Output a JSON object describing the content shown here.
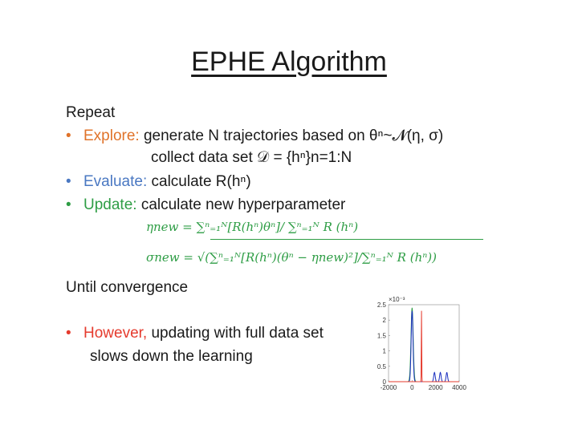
{
  "slide": {
    "title": "EPHE Algorithm",
    "repeat": "Repeat",
    "explore_label": "Explore:",
    "explore_text": "generate N trajectories based on θⁿ~𝓝(η, σ)",
    "collect_text": "collect data set 𝒟 = {hⁿ}n=1:N",
    "evaluate_label": "Evaluate:",
    "evaluate_text": "calculate R(hⁿ)",
    "update_label": "Update:",
    "update_text": "calculate new hyperparameter",
    "eta_formula": "ηnew = ∑ⁿ₌₁ᴺ[R(hⁿ)θⁿ]/ ∑ⁿ₌₁ᴺ R (hⁿ)",
    "sigma_formula": "σnew = √(∑ⁿ₌₁ᴺ[R(hⁿ)(θⁿ − ηnew)²]/∑ⁿ₌₁ᴺ R (hⁿ))",
    "until": "Until convergence",
    "however_label": "However,",
    "however_text": "updating with full data set",
    "however_text2": "slows down the learning"
  },
  "chart_data": {
    "type": "line",
    "scale_label": "×10⁻³",
    "xlim": [
      -2000,
      4000
    ],
    "ylim": [
      0,
      0.0025
    ],
    "x_ticks": [
      "-2000",
      "0",
      "2000",
      "4000"
    ],
    "y_ticks": [
      "0",
      "0.5",
      "1",
      "1.5",
      "2",
      "2.5"
    ],
    "y_tick_values": [
      0,
      0.0005,
      0.001,
      0.0015,
      0.002,
      0.0025
    ],
    "x_tick_values": [
      -2000,
      0,
      2000,
      4000
    ],
    "series": [
      {
        "color": "#2e9d45",
        "peaks": [
          {
            "x": 0,
            "height": 0.0024,
            "width": 130
          }
        ]
      },
      {
        "color": "#1a2fbf",
        "peaks": [
          {
            "x": 0,
            "height": 0.0023,
            "width": 110
          },
          {
            "x": 1900,
            "height": 0.0003,
            "width": 90
          },
          {
            "x": 2400,
            "height": 0.0003,
            "width": 90
          },
          {
            "x": 2950,
            "height": 0.0003,
            "width": 90
          }
        ]
      },
      {
        "color": "#e53b2e",
        "peaks": [
          {
            "x": 800,
            "height": 0.0023,
            "width": 25
          }
        ]
      }
    ]
  }
}
